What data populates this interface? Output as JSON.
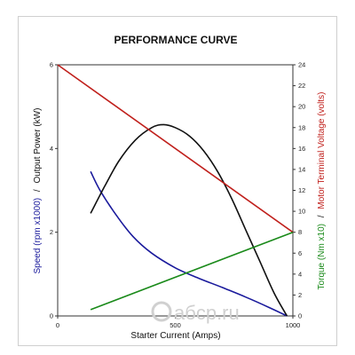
{
  "chart_data": {
    "type": "line",
    "title": "PERFORMANCE CURVE",
    "xlabel": "Starter Current (Amps)",
    "xlim": [
      0,
      1000
    ],
    "x_ticks": [
      "0",
      "500",
      "1000"
    ],
    "ylim_left": [
      0,
      6
    ],
    "y_left_ticks": [
      "0",
      "2",
      "4",
      "6"
    ],
    "ylim_right": [
      0,
      24
    ],
    "y_right_ticks": [
      "0",
      "2",
      "4",
      "6",
      "8",
      "10",
      "12",
      "14",
      "16",
      "18",
      "20",
      "22",
      "24"
    ],
    "ylabel_left": {
      "part1": "Speed (rpm x1000)",
      "separator": "/",
      "part2": "Output Power (kW)"
    },
    "ylabel_right": {
      "part1": "Torque (Nm x10)",
      "separator": "/",
      "part2": "Motor Terminal Voltage (volts)"
    },
    "grid": false,
    "series": [
      {
        "color": "#1a1a9c",
        "axis": "left",
        "x": [
          140,
          180,
          250,
          320,
          400,
          500,
          600,
          700,
          800,
          900,
          975
        ],
        "y": [
          3.45,
          3.0,
          2.4,
          1.9,
          1.5,
          1.15,
          0.9,
          0.68,
          0.45,
          0.2,
          0.0
        ]
      },
      {
        "color": "#111111",
        "axis": "left",
        "x": [
          140,
          200,
          260,
          330,
          400,
          450,
          500,
          560,
          620,
          680,
          740,
          800,
          860,
          920,
          975
        ],
        "y": [
          2.45,
          3.1,
          3.7,
          4.2,
          4.5,
          4.57,
          4.5,
          4.3,
          3.95,
          3.45,
          2.8,
          2.05,
          1.3,
          0.55,
          0.0
        ]
      },
      {
        "color": "#c0201c",
        "axis": "right",
        "x": [
          0,
          1000
        ],
        "y": [
          24,
          8
        ]
      },
      {
        "color": "#1a8a1a",
        "axis": "right",
        "x": [
          140,
          1000
        ],
        "y": [
          0.6,
          8.0
        ]
      }
    ]
  },
  "watermark": "aбcp.ru",
  "colors": {
    "speed": "#1a1a9c",
    "power": "#111111",
    "voltage": "#c0201c",
    "torque": "#1a8a1a"
  }
}
